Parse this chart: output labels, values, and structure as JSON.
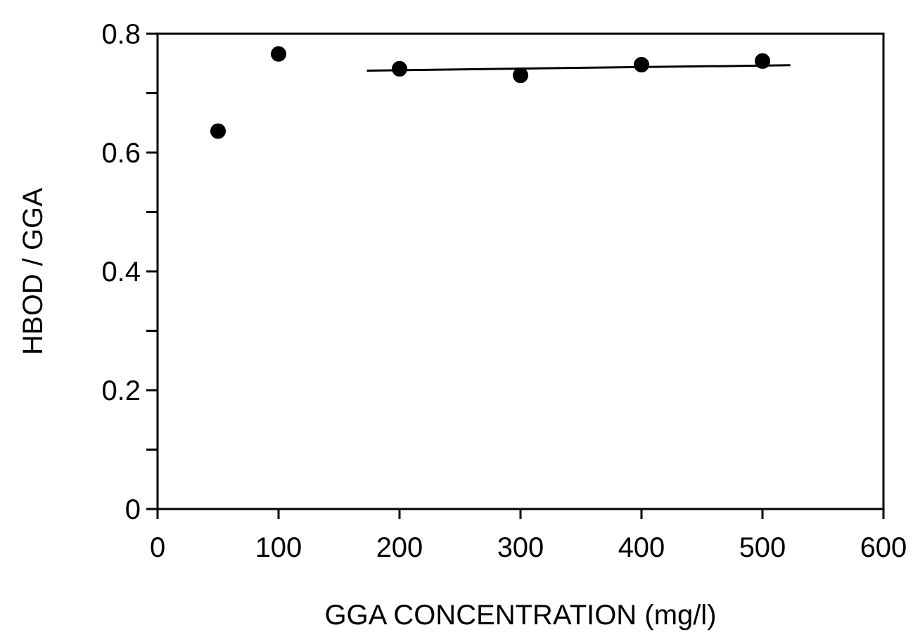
{
  "chart_data": {
    "type": "scatter",
    "xlabel": "GGA CONCENTRATION (mg/l)",
    "ylabel": "HBOD / GGA",
    "xlim": [
      0,
      600
    ],
    "xticks": [
      0,
      100,
      200,
      300,
      400,
      500,
      600
    ],
    "ylim": [
      0,
      0.8
    ],
    "yticks": [
      0,
      {
        "value": 0.1,
        "label": null
      },
      0.2,
      {
        "value": 0.3,
        "label": null
      },
      0.4,
      {
        "value": 0.5,
        "label": null
      },
      0.6,
      {
        "value": 0.7,
        "label": null
      },
      0.8
    ],
    "grid": false,
    "marker": "circle",
    "series": [
      {
        "type": "scatter",
        "color": "#000000",
        "x": [
          50,
          100,
          200,
          300,
          400,
          500
        ],
        "values": [
          0.636,
          0.766,
          0.741,
          0.73,
          0.748,
          0.754
        ]
      },
      {
        "type": "line",
        "color": "#000000",
        "marker": "none",
        "line_style": "solid",
        "x": [
          173,
          523
        ],
        "values": [
          0.738,
          0.747
        ]
      }
    ]
  }
}
